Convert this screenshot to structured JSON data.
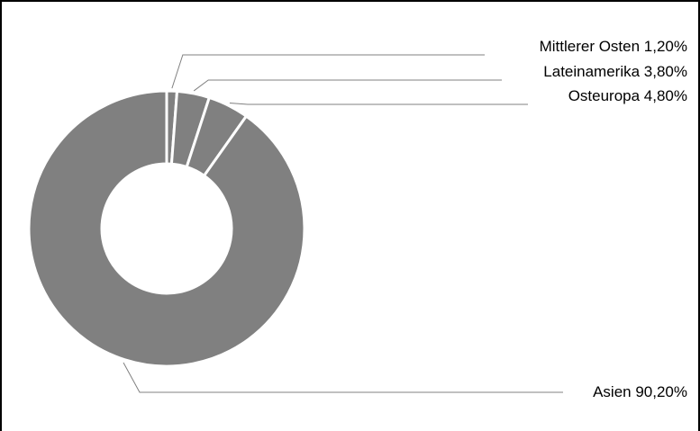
{
  "chart_data": {
    "type": "pie",
    "title": "",
    "series": [
      {
        "name": "",
        "values": [
          1.2,
          3.8,
          4.8,
          90.2
        ]
      }
    ],
    "categories": [
      "Mittlerer Osten",
      "Lateinamerika",
      "Osteuropa",
      "Asien"
    ],
    "values": [
      1.2,
      3.8,
      4.8,
      90.2
    ],
    "labels": [
      "Mittlerer Osten 1,20%",
      "Lateinamerika 3,80%",
      "Osteuropa 4,80%",
      "Asien 90,20%"
    ],
    "slice_color": "#808080",
    "separator_color": "#ffffff",
    "leader_color": "#808080",
    "donut": true,
    "legend": "none"
  }
}
